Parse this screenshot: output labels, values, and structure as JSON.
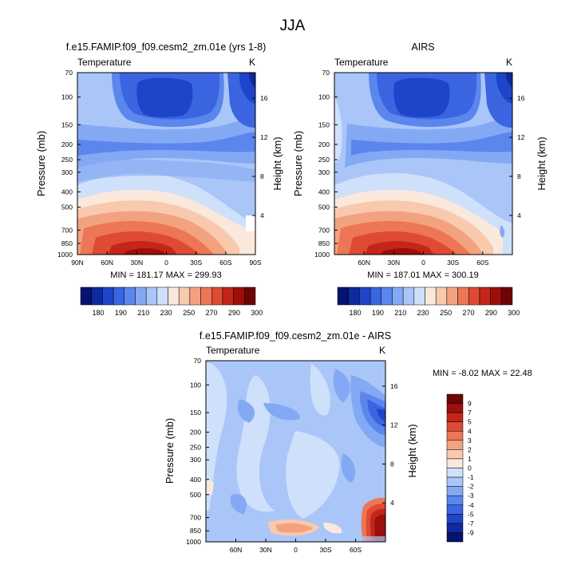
{
  "figure": {
    "title": "JJA"
  },
  "colors": {
    "model_obs": [
      "#04146e",
      "#0e2a9e",
      "#1e45c9",
      "#3a64e0",
      "#5b86ee",
      "#84a9f4",
      "#aac6f8",
      "#cfe0fb",
      "#fbe8dc",
      "#f8c9ad",
      "#f3a27f",
      "#ec7656",
      "#de4a33",
      "#c32619",
      "#9c0f0b",
      "#6e0505"
    ],
    "diff": [
      "#04146e",
      "#10299e",
      "#1e45c9",
      "#3a64e0",
      "#5b86ee",
      "#84a9f4",
      "#aac6f8",
      "#cfe0fb",
      "#fbe8dc",
      "#f8c9ad",
      "#f3a27f",
      "#ec7656",
      "#de4a33",
      "#c32619",
      "#9c0f0b",
      "#6e0505"
    ]
  },
  "chart_data": [
    {
      "type": "heatmap",
      "id": "model",
      "title": "f.e15.FAMIP.f09_f09.cesm2_zm.01e (yrs 1-8)",
      "left_label": "Temperature",
      "right_label": "K",
      "ylabel": "Pressure (mb)",
      "y2label": "Height (km)",
      "x_ticks": [
        "90N",
        "60N",
        "30N",
        "0",
        "30S",
        "60S",
        "90S"
      ],
      "x_range": [
        90,
        -90
      ],
      "y_ticks": [
        "70",
        "100",
        "150",
        "200",
        "250",
        "300",
        "400",
        "500",
        "700",
        "850",
        "1000"
      ],
      "y2_ticks": [
        "16",
        "12",
        "8",
        "4"
      ],
      "y_range": [
        1000,
        70
      ],
      "min_max_text": "MIN = 181.17   MAX = 299.93",
      "min": 181.17,
      "max": 299.93,
      "colorbar_labels": [
        "180",
        "190",
        "210",
        "230",
        "250",
        "270",
        "290",
        "300"
      ]
    },
    {
      "type": "heatmap",
      "id": "obs",
      "title": "AIRS",
      "left_label": "Temperature",
      "right_label": "K",
      "ylabel": "Pressure (mb)",
      "y2label": "Height (km)",
      "x_ticks": [
        "60N",
        "30N",
        "0",
        "30S",
        "60S"
      ],
      "x_range": [
        90,
        -90
      ],
      "y_ticks": [
        "70",
        "100",
        "150",
        "200",
        "250",
        "300",
        "400",
        "500",
        "700",
        "850",
        "1000"
      ],
      "y2_ticks": [
        "16",
        "12",
        "8",
        "4"
      ],
      "y_range": [
        1000,
        70
      ],
      "min_max_text": "MIN = 187.01   MAX = 300.19",
      "min": 187.01,
      "max": 300.19,
      "colorbar_labels": [
        "180",
        "190",
        "210",
        "230",
        "250",
        "270",
        "290",
        "300"
      ]
    },
    {
      "type": "heatmap",
      "id": "diff",
      "title": "f.e15.FAMIP.f09_f09.cesm2_zm.01e - AIRS",
      "left_label": "Temperature",
      "right_label": "K",
      "ylabel": "Pressure (mb)",
      "y2label": "Height (km)",
      "x_ticks": [
        "60N",
        "30N",
        "0",
        "30S",
        "60S"
      ],
      "x_range": [
        90,
        -90
      ],
      "y_ticks": [
        "70",
        "100",
        "150",
        "200",
        "250",
        "300",
        "400",
        "500",
        "700",
        "850",
        "1000"
      ],
      "y2_ticks": [
        "16",
        "12",
        "8",
        "4"
      ],
      "y_range": [
        1000,
        70
      ],
      "min_max_text": "MIN =  -8.02   MAX =  22.48",
      "min": -8.02,
      "max": 22.48,
      "colorbar_labels": [
        "9",
        "7",
        "5",
        "4",
        "3",
        "2",
        "1",
        "0",
        "-1",
        "-2",
        "-3",
        "-4",
        "-5",
        "-7",
        "-9"
      ]
    }
  ]
}
